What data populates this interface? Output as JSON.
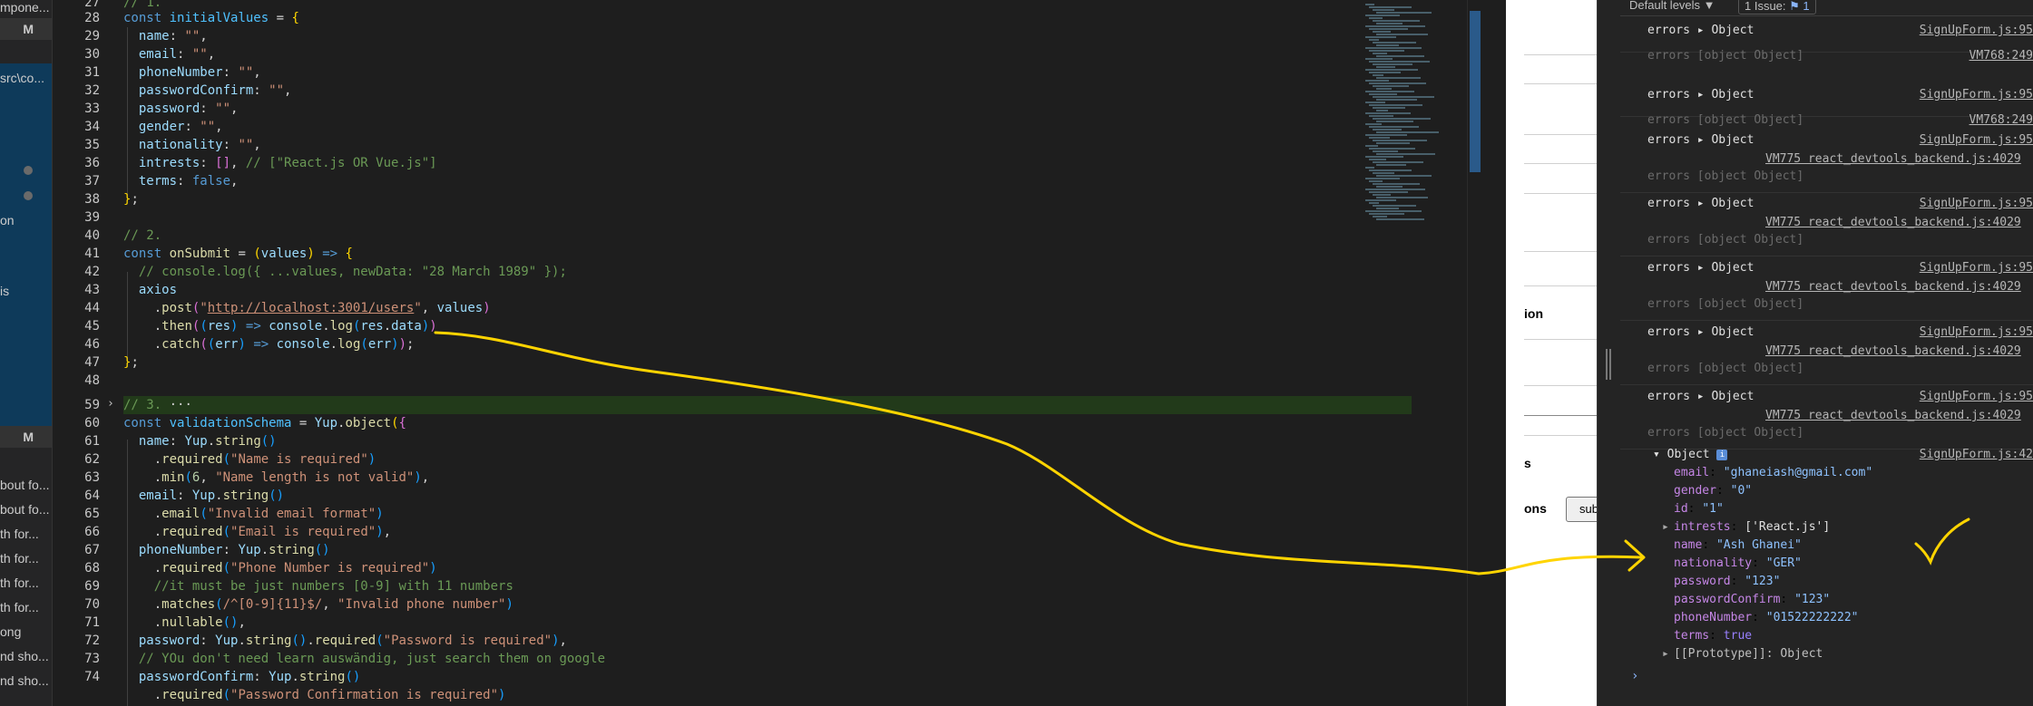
{
  "sidebar": {
    "top_text": "mpone...",
    "header1": "M",
    "folder_text": "src\\co...",
    "item_on": "on",
    "item_is": "is",
    "header2": "M",
    "list": [
      "bout fo...",
      "bout fo...",
      "th for...",
      "th for...",
      "th for...",
      "th for...",
      "ong",
      "nd sho...",
      "nd sho..."
    ]
  },
  "editor": {
    "line_numbers": [
      "27",
      "28",
      "29",
      "30",
      "31",
      "32",
      "33",
      "34",
      "35",
      "36",
      "37",
      "38",
      "39",
      "40",
      "41",
      "42",
      "43",
      "44",
      "45",
      "46",
      "47",
      "48",
      "59",
      "60",
      "61",
      "62",
      "63",
      "64",
      "65",
      "66",
      "67",
      "68",
      "69",
      "70",
      "71",
      "72",
      "73",
      "74"
    ],
    "top_comment": "// 1.",
    "colors": {
      "background": "#1e1e1e",
      "keyword": "#569cd6",
      "string": "#ce9178",
      "comment": "#6a9955",
      "function": "#dcdcaa",
      "property": "#9cdcfe",
      "highlight_line": "#223a1a"
    }
  },
  "page": {
    "label_option": "ion",
    "label_is": "s",
    "label_options": "ons",
    "submit_label": "submit"
  },
  "console": {
    "toolbar": {
      "levels": "Default levels ▼",
      "issues_prefix": "1 Issue:",
      "issues_badge": "⚑ 1"
    },
    "messages": [
      {
        "text": "errors ▸ Object",
        "source": "SignUpForm.js:95",
        "dim": "errors [object Object]",
        "dim_source": "VM768:249"
      },
      {
        "text": "errors ▸ Object",
        "source": "SignUpForm.js:95",
        "dim": "errors [object Object]",
        "dim_source": "VM768:249"
      },
      {
        "text": "errors ▸ Object",
        "source": "SignUpForm.js:95",
        "backend": "VM775 react_devtools_backend.js:4029",
        "dim": "errors [object Object]"
      },
      {
        "text": "errors ▸ Object",
        "source": "SignUpForm.js:95",
        "backend": "VM775 react_devtools_backend.js:4029",
        "dim": "errors [object Object]"
      },
      {
        "text": "errors ▸ Object",
        "source": "SignUpForm.js:95",
        "backend": "VM775 react_devtools_backend.js:4029",
        "dim": "errors [object Object]"
      },
      {
        "text": "errors ▸ Object",
        "source": "SignUpForm.js:95",
        "backend": "VM775 react_devtools_backend.js:4029",
        "dim": "errors [object Object]"
      },
      {
        "text": "errors ▸ Object",
        "source": "SignUpForm.js:95",
        "backend": "VM775 react_devtools_backend.js:4029",
        "dim": "errors [object Object]"
      }
    ],
    "object": {
      "header": "▾ Object",
      "source": "SignUpForm.js:42",
      "fields": [
        {
          "k": "email",
          "v": "\"ghaneiash@gmail.com\""
        },
        {
          "k": "gender",
          "v": "\"0\""
        },
        {
          "k": "id",
          "v": "\"1\""
        },
        {
          "k": "intrests",
          "v": "['React.js']",
          "expand": true
        },
        {
          "k": "name",
          "v": "\"Ash Ghanei\""
        },
        {
          "k": "nationality",
          "v": "\"GER\""
        },
        {
          "k": "password",
          "v": "\"123\""
        },
        {
          "k": "passwordConfirm",
          "v": "\"123\""
        },
        {
          "k": "phoneNumber",
          "v": "\"01522222222\""
        },
        {
          "k": "terms",
          "v": "true",
          "bool": true
        }
      ],
      "proto": "[[Prototype]]: Object"
    },
    "prompt": "›"
  },
  "annotation": {
    "color": "#ffd400",
    "checkmark": "✓"
  }
}
